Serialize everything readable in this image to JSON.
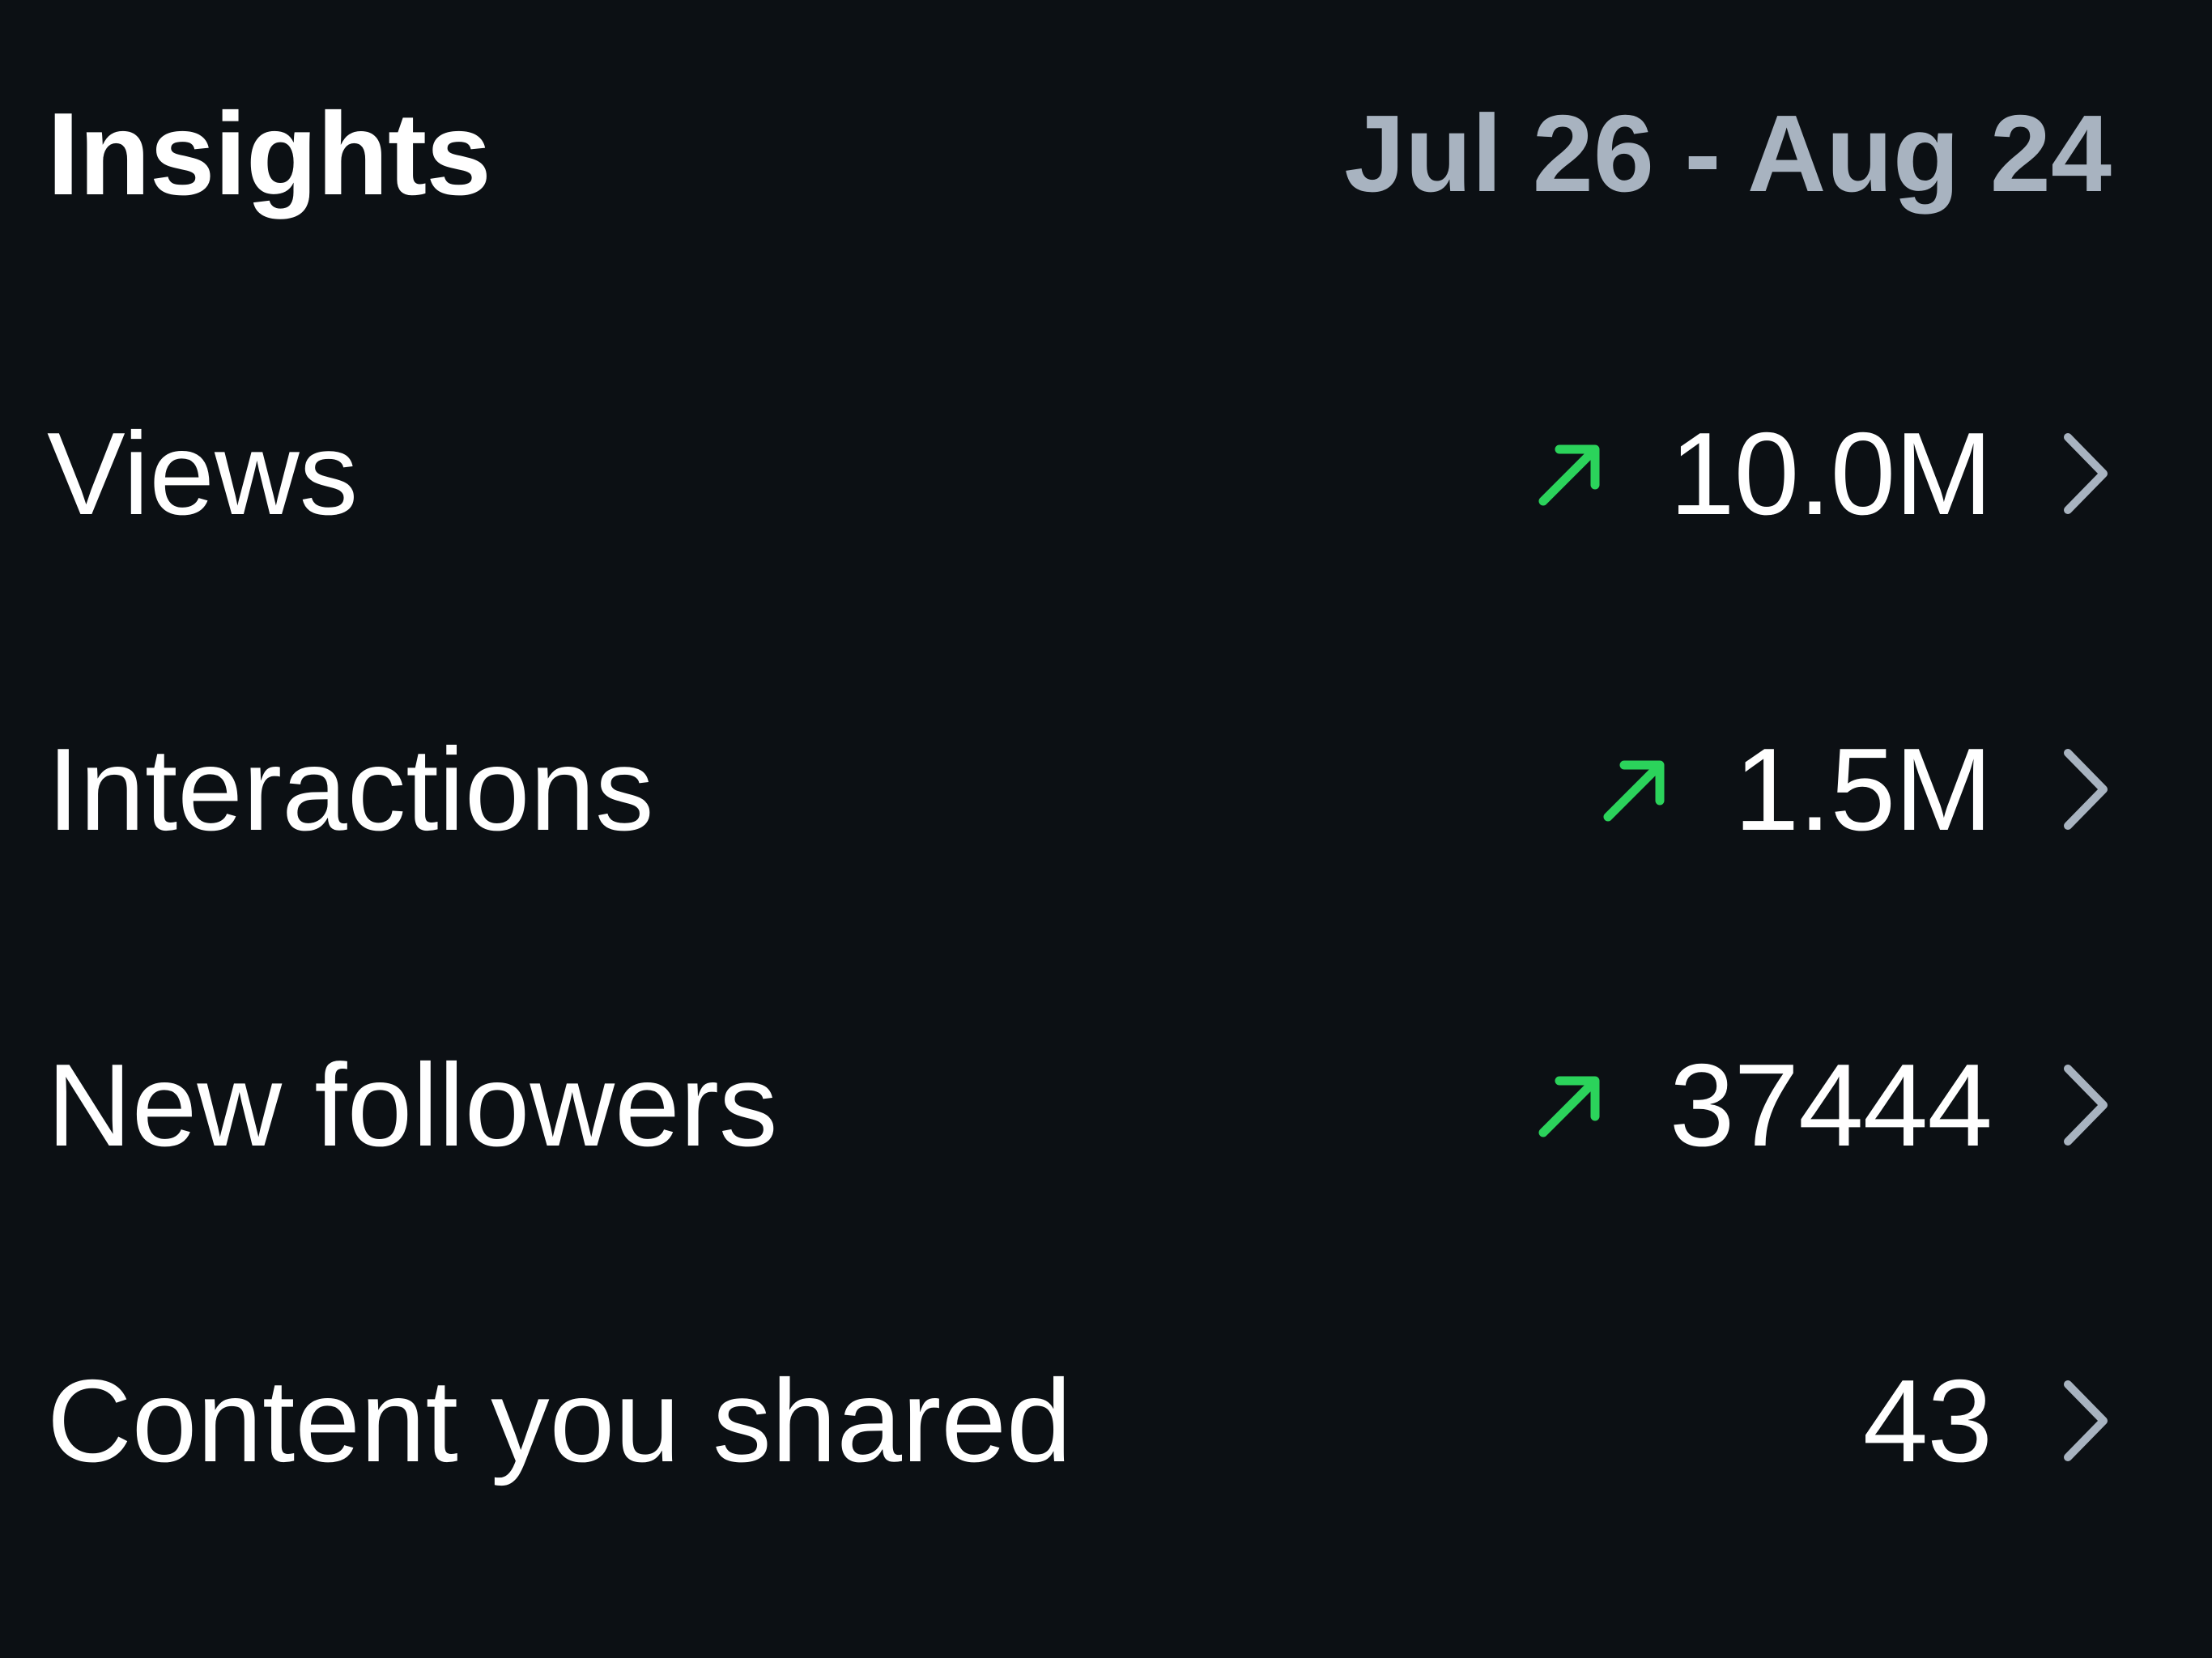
{
  "header": {
    "title": "Insights",
    "date_range": "Jul 26 - Aug 24"
  },
  "rows": [
    {
      "label": "Views",
      "value": "10.0M",
      "trend": "up-arrow-icon"
    },
    {
      "label": "Interactions",
      "value": "1.5M",
      "trend": "up-arrow-icon"
    },
    {
      "label": "New followers",
      "value": "37444",
      "trend": "up-arrow-icon"
    },
    {
      "label": "Content you shared",
      "value": "43",
      "trend": null
    }
  ],
  "colors": {
    "background": "#0c1014",
    "text": "#ffffff",
    "muted": "#a8b3c0",
    "trend_up": "#2bd35b",
    "chevron": "#a8b3c0"
  }
}
